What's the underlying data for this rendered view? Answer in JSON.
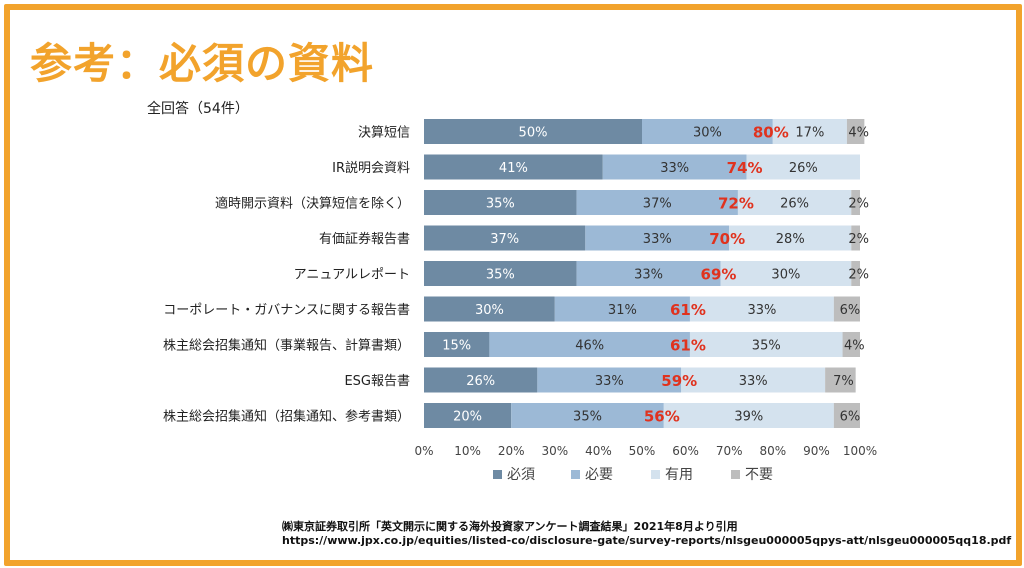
{
  "page": {
    "title": "参考：必須の資料",
    "source": "㈱東京証券取引所「英文開示に関する海外投資家アンケート調査結果」2021年8月より引用",
    "url": "https://www.jpx.co.jp/equities/listed-co/disclosure-gate/survey-reports/nlsgeu000005qpys-att/nlsgeu000005qq18.pdf"
  },
  "chart_data": {
    "type": "bar",
    "orientation": "horizontal",
    "stacked": true,
    "title": "",
    "subtitle": "全回答（54件）",
    "categories": [
      "決算短信",
      "IR説明会資料",
      "適時開示資料（決算短信を除く）",
      "有価証券報告書",
      "アニュアルレポート",
      "コーポレート・ガバナンスに関する報告書",
      "株主総会招集通知（事業報告、計算書類）",
      "ESG報告書",
      "株主総会招集通知（招集通知、参考書類）"
    ],
    "series": [
      {
        "name": "必須",
        "color": "#6e8aa3",
        "values": [
          50,
          41,
          35,
          37,
          35,
          30,
          15,
          26,
          20
        ]
      },
      {
        "name": "必要",
        "color": "#9cb9d6",
        "values": [
          30,
          33,
          37,
          33,
          33,
          31,
          46,
          33,
          35
        ]
      },
      {
        "name": "有用",
        "color": "#d4e2ee",
        "values": [
          17,
          26,
          26,
          28,
          30,
          33,
          35,
          33,
          39
        ]
      },
      {
        "name": "不要",
        "color": "#bdbdbd",
        "values": [
          4,
          0,
          2,
          2,
          2,
          6,
          4,
          7,
          6
        ]
      }
    ],
    "highlight_labels": [
      "80%",
      "74%",
      "72%",
      "70%",
      "69%",
      "61%",
      "61%",
      "59%",
      "56%"
    ],
    "highlight_color": "#e0321e",
    "xlim": [
      0,
      100
    ],
    "xticks": [
      "0%",
      "10%",
      "20%",
      "30%",
      "40%",
      "50%",
      "60%",
      "70%",
      "80%",
      "90%",
      "100%"
    ],
    "legend": "bottom",
    "grid": false
  }
}
